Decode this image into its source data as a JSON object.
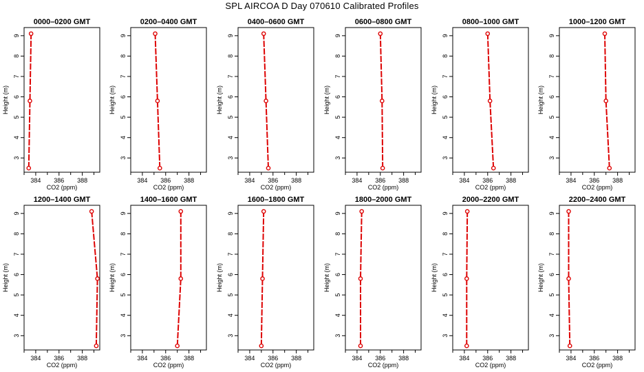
{
  "figure": {
    "title": "SPL AIRCOA D  Day 070610  Calibrated Profiles"
  },
  "colors": {
    "profile": "#dd0000",
    "axis": "#000000",
    "background": "#ffffff"
  },
  "chart_data": [
    {
      "type": "line",
      "title": "0000–0200 GMT",
      "xlabel": "CO2 (ppm)",
      "ylabel": "Height (m)",
      "xlim": [
        383,
        389.5
      ],
      "ylim": [
        2.3,
        9.4
      ],
      "xticks": [
        384,
        386,
        388
      ],
      "yticks": [
        3,
        4,
        5,
        6,
        7,
        8,
        9
      ],
      "points": [
        {
          "x": 383.4,
          "y": 2.5
        },
        {
          "x": 383.5,
          "y": 5.8
        },
        {
          "x": 383.6,
          "y": 9.1
        }
      ]
    },
    {
      "type": "line",
      "title": "0200–0400 GMT",
      "xlabel": "CO2 (ppm)",
      "ylabel": "Height (m)",
      "xlim": [
        383,
        389.5
      ],
      "ylim": [
        2.3,
        9.4
      ],
      "xticks": [
        384,
        386,
        388
      ],
      "yticks": [
        3,
        4,
        5,
        6,
        7,
        8,
        9
      ],
      "points": [
        {
          "x": 385.5,
          "y": 2.5
        },
        {
          "x": 385.3,
          "y": 5.8
        },
        {
          "x": 385.1,
          "y": 9.1
        }
      ]
    },
    {
      "type": "line",
      "title": "0400–0600 GMT",
      "xlabel": "CO2 (ppm)",
      "ylabel": "Height (m)",
      "xlim": [
        383,
        389.5
      ],
      "ylim": [
        2.3,
        9.4
      ],
      "xticks": [
        384,
        386,
        388
      ],
      "yticks": [
        3,
        4,
        5,
        6,
        7,
        8,
        9
      ],
      "points": [
        {
          "x": 385.6,
          "y": 2.5
        },
        {
          "x": 385.4,
          "y": 5.8
        },
        {
          "x": 385.2,
          "y": 9.1
        }
      ]
    },
    {
      "type": "line",
      "title": "0600–0800 GMT",
      "xlabel": "CO2 (ppm)",
      "ylabel": "Height (m)",
      "xlim": [
        383,
        389.5
      ],
      "ylim": [
        2.3,
        9.4
      ],
      "xticks": [
        384,
        386,
        388
      ],
      "yticks": [
        3,
        4,
        5,
        6,
        7,
        8,
        9
      ],
      "points": [
        {
          "x": 386.2,
          "y": 2.5
        },
        {
          "x": 386.15,
          "y": 5.8
        },
        {
          "x": 386.0,
          "y": 9.1
        }
      ]
    },
    {
      "type": "line",
      "title": "0800–1000 GMT",
      "xlabel": "CO2 (ppm)",
      "ylabel": "Height (m)",
      "xlim": [
        383,
        389.5
      ],
      "ylim": [
        2.3,
        9.4
      ],
      "xticks": [
        384,
        386,
        388
      ],
      "yticks": [
        3,
        4,
        5,
        6,
        7,
        8,
        9
      ],
      "points": [
        {
          "x": 386.5,
          "y": 2.5
        },
        {
          "x": 386.2,
          "y": 5.8
        },
        {
          "x": 386.0,
          "y": 9.1
        }
      ]
    },
    {
      "type": "line",
      "title": "1000–1200 GMT",
      "xlabel": "CO2 (ppm)",
      "ylabel": "Height (m)",
      "xlim": [
        383,
        389.5
      ],
      "ylim": [
        2.3,
        9.4
      ],
      "xticks": [
        384,
        386,
        388
      ],
      "yticks": [
        3,
        4,
        5,
        6,
        7,
        8,
        9
      ],
      "points": [
        {
          "x": 387.3,
          "y": 2.5
        },
        {
          "x": 387.0,
          "y": 5.8
        },
        {
          "x": 386.9,
          "y": 9.1
        }
      ]
    },
    {
      "type": "line",
      "title": "1200–1400 GMT",
      "xlabel": "CO2 (ppm)",
      "ylabel": "Height (m)",
      "xlim": [
        383,
        389.5
      ],
      "ylim": [
        2.3,
        9.4
      ],
      "xticks": [
        384,
        386,
        388
      ],
      "yticks": [
        3,
        4,
        5,
        6,
        7,
        8,
        9
      ],
      "points": [
        {
          "x": 389.2,
          "y": 2.5
        },
        {
          "x": 389.3,
          "y": 5.8
        },
        {
          "x": 388.8,
          "y": 9.1
        }
      ]
    },
    {
      "type": "line",
      "title": "1400–1600 GMT",
      "xlabel": "CO2 (ppm)",
      "ylabel": "Height (m)",
      "xlim": [
        383,
        389.5
      ],
      "ylim": [
        2.3,
        9.4
      ],
      "xticks": [
        384,
        386,
        388
      ],
      "yticks": [
        3,
        4,
        5,
        6,
        7,
        8,
        9
      ],
      "points": [
        {
          "x": 387.0,
          "y": 2.5
        },
        {
          "x": 387.3,
          "y": 5.8
        },
        {
          "x": 387.3,
          "y": 9.1
        }
      ]
    },
    {
      "type": "line",
      "title": "1600–1800 GMT",
      "xlabel": "CO2 (ppm)",
      "ylabel": "Height (m)",
      "xlim": [
        383,
        389.5
      ],
      "ylim": [
        2.3,
        9.4
      ],
      "xticks": [
        384,
        386,
        388
      ],
      "yticks": [
        3,
        4,
        5,
        6,
        7,
        8,
        9
      ],
      "points": [
        {
          "x": 385.0,
          "y": 2.5
        },
        {
          "x": 385.1,
          "y": 5.8
        },
        {
          "x": 385.2,
          "y": 9.1
        }
      ]
    },
    {
      "type": "line",
      "title": "1800–2000 GMT",
      "xlabel": "CO2 (ppm)",
      "ylabel": "Height (m)",
      "xlim": [
        383,
        389.5
      ],
      "ylim": [
        2.3,
        9.4
      ],
      "xticks": [
        384,
        386,
        388
      ],
      "yticks": [
        3,
        4,
        5,
        6,
        7,
        8,
        9
      ],
      "points": [
        {
          "x": 384.3,
          "y": 2.5
        },
        {
          "x": 384.3,
          "y": 5.8
        },
        {
          "x": 384.4,
          "y": 9.1
        }
      ]
    },
    {
      "type": "line",
      "title": "2000–2200 GMT",
      "xlabel": "CO2 (ppm)",
      "ylabel": "Height (m)",
      "xlim": [
        383,
        389.5
      ],
      "ylim": [
        2.3,
        9.4
      ],
      "xticks": [
        384,
        386,
        388
      ],
      "yticks": [
        3,
        4,
        5,
        6,
        7,
        8,
        9
      ],
      "points": [
        {
          "x": 384.2,
          "y": 2.5
        },
        {
          "x": 384.2,
          "y": 5.8
        },
        {
          "x": 384.25,
          "y": 9.1
        }
      ]
    },
    {
      "type": "line",
      "title": "2200–2400 GMT",
      "xlabel": "CO2 (ppm)",
      "ylabel": "Height (m)",
      "xlim": [
        383,
        389.5
      ],
      "ylim": [
        2.3,
        9.4
      ],
      "xticks": [
        384,
        386,
        388
      ],
      "yticks": [
        3,
        4,
        5,
        6,
        7,
        8,
        9
      ],
      "points": [
        {
          "x": 383.9,
          "y": 2.5
        },
        {
          "x": 383.8,
          "y": 5.8
        },
        {
          "x": 383.8,
          "y": 9.1
        }
      ]
    }
  ]
}
